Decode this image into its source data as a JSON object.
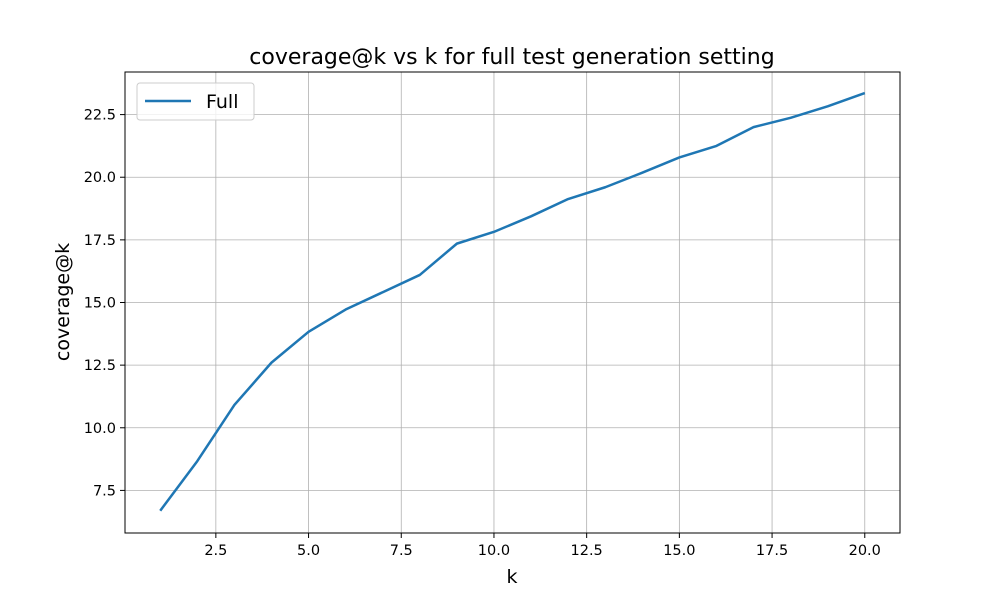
{
  "chart_data": {
    "type": "line",
    "title": "coverage@k vs k for full test generation setting",
    "xlabel": "k",
    "ylabel": "coverage@k",
    "xlim": [
      0.05,
      20.95
    ],
    "ylim": [
      5.8,
      24.2
    ],
    "xticks": [
      2.5,
      5.0,
      7.5,
      10.0,
      12.5,
      15.0,
      17.5,
      20.0
    ],
    "xtick_labels": [
      "2.5",
      "5.0",
      "7.5",
      "10.0",
      "12.5",
      "15.0",
      "17.5",
      "20.0"
    ],
    "yticks": [
      7.5,
      10.0,
      12.5,
      15.0,
      17.5,
      20.0,
      22.5
    ],
    "ytick_labels": [
      "7.5",
      "10.0",
      "12.5",
      "15.0",
      "17.5",
      "20.0",
      "22.5"
    ],
    "grid": true,
    "legend_position": "top-left",
    "x": [
      1,
      2,
      3,
      4,
      5,
      6,
      7,
      8,
      9,
      10,
      11,
      12,
      13,
      14,
      15,
      16,
      17,
      18,
      19,
      20
    ],
    "series": [
      {
        "name": "Full",
        "color": "#1f77b4",
        "values": [
          6.69,
          8.67,
          10.91,
          12.6,
          13.83,
          14.72,
          15.41,
          16.1,
          17.35,
          17.82,
          18.44,
          19.13,
          19.6,
          20.18,
          20.79,
          21.25,
          22.0,
          22.37,
          22.83,
          23.36
        ]
      }
    ]
  }
}
